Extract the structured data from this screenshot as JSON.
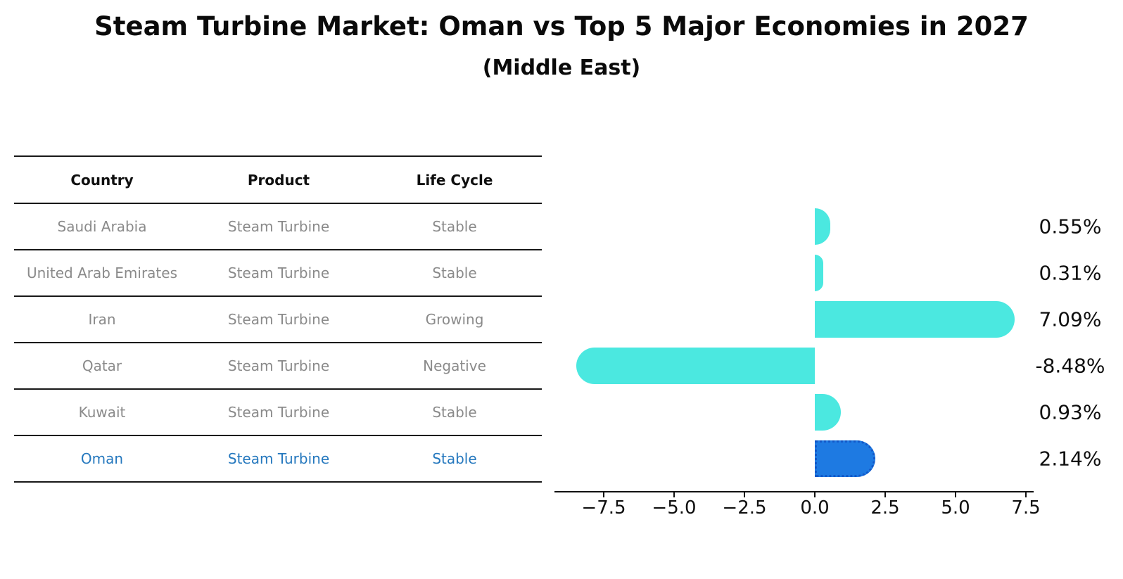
{
  "title": "Steam Turbine Market: Oman vs Top 5 Major Economies in 2027",
  "subtitle": "(Middle East)",
  "table": {
    "headers": [
      "Country",
      "Product",
      "Life Cycle"
    ],
    "rows": [
      {
        "country": "Saudi Arabia",
        "product": "Steam Turbine",
        "life_cycle": "Stable",
        "highlighted": false
      },
      {
        "country": "United Arab Emirates",
        "product": "Steam Turbine",
        "life_cycle": "Stable",
        "highlighted": false
      },
      {
        "country": "Iran",
        "product": "Steam Turbine",
        "life_cycle": "Growing",
        "highlighted": false
      },
      {
        "country": "Qatar",
        "product": "Steam Turbine",
        "life_cycle": "Negative",
        "highlighted": false
      },
      {
        "country": "Kuwait",
        "product": "Steam Turbine",
        "life_cycle": "Stable",
        "highlighted": false
      },
      {
        "country": "Oman",
        "product": "Steam Turbine",
        "life_cycle": "Stable",
        "highlighted": true
      }
    ]
  },
  "chart_data": {
    "type": "bar",
    "orientation": "horizontal",
    "categories": [
      "Saudi Arabia",
      "United Arab Emirates",
      "Iran",
      "Qatar",
      "Kuwait",
      "Oman"
    ],
    "values": [
      0.55,
      0.31,
      7.09,
      -8.48,
      0.93,
      2.14
    ],
    "value_labels": [
      "0.55%",
      "0.31%",
      "7.09%",
      "-8.48%",
      "0.93%",
      "2.14%"
    ],
    "x_ticks": [
      -7.5,
      -5.0,
      -2.5,
      0.0,
      2.5,
      5.0,
      7.5
    ],
    "x_tick_labels": [
      "−7.5",
      "−5.0",
      "−2.5",
      "0.0",
      "2.5",
      "5.0",
      "7.5"
    ],
    "xlim": [
      -9.25,
      7.75
    ],
    "grid": false,
    "legend": null,
    "bar_color": "#4BE8E0",
    "highlight_index": 5,
    "highlight_color": "#1E7AE2",
    "highlight_border_color": "#1258C8",
    "highlight_text_color": "#2578BE"
  },
  "colors": {
    "background": "#FFFFFF",
    "text": "#0F0F0F",
    "table_text": "#8A8A8A",
    "rule": "#181818"
  }
}
